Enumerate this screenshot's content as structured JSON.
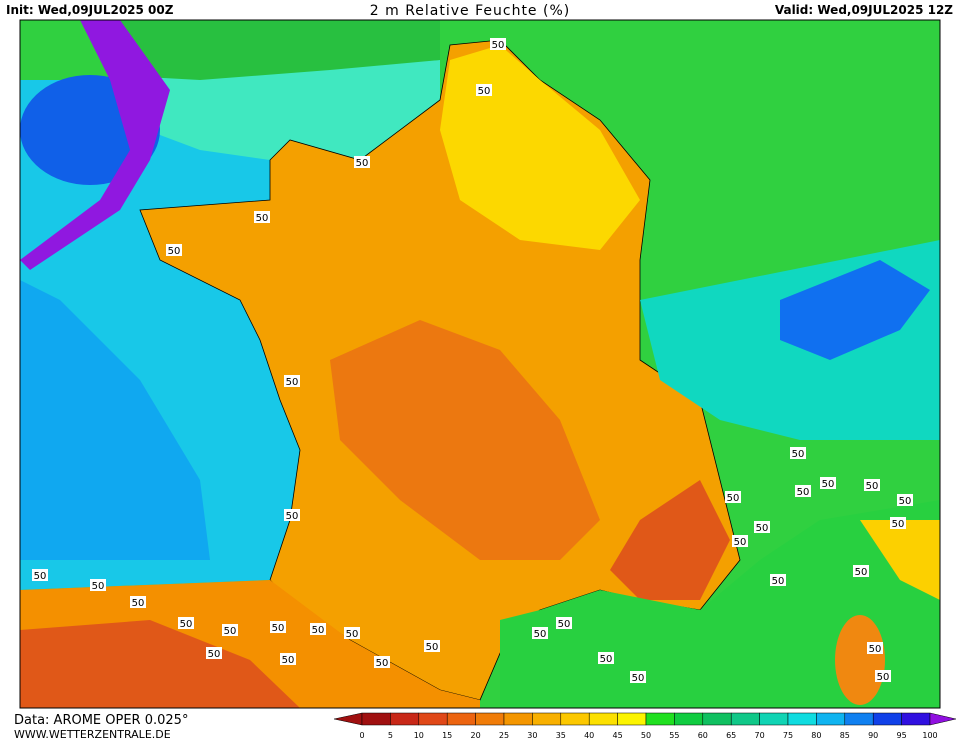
{
  "header": {
    "init": "Init: Wed,09JUL2025 00Z",
    "title": "2 m Relative Feuchte (%)",
    "valid": "Valid: Wed,09JUL2025 12Z"
  },
  "footer": {
    "data": "Data: AROME OPER 0.025°",
    "website": "WWW.WETTERZENTRALE.DE"
  },
  "colorbar": {
    "ticks": [
      0,
      5,
      10,
      15,
      20,
      25,
      30,
      35,
      40,
      45,
      50,
      55,
      60,
      65,
      70,
      75,
      80,
      85,
      90,
      95,
      100
    ],
    "colors": [
      "#a01010",
      "#c82818",
      "#e04818",
      "#ec6410",
      "#f07c08",
      "#f49600",
      "#f8b000",
      "#fcc800",
      "#fce000",
      "#fcf400",
      "#20e020",
      "#10cc40",
      "#10c060",
      "#10c888",
      "#10d4b4",
      "#10dce0",
      "#10b4f0",
      "#1080f0",
      "#1040e8",
      "#3010e0",
      "#9010e0"
    ]
  },
  "contour_labels": [
    "50",
    "50",
    "50",
    "50",
    "50",
    "50",
    "50",
    "50",
    "50",
    "50",
    "50",
    "50",
    "50",
    "50",
    "50",
    "50",
    "50",
    "50",
    "50",
    "50",
    "50",
    "50",
    "50",
    "50",
    "50",
    "50",
    "50",
    "50",
    "50",
    "50",
    "50",
    "50",
    "50",
    "50",
    "50",
    "50"
  ]
}
